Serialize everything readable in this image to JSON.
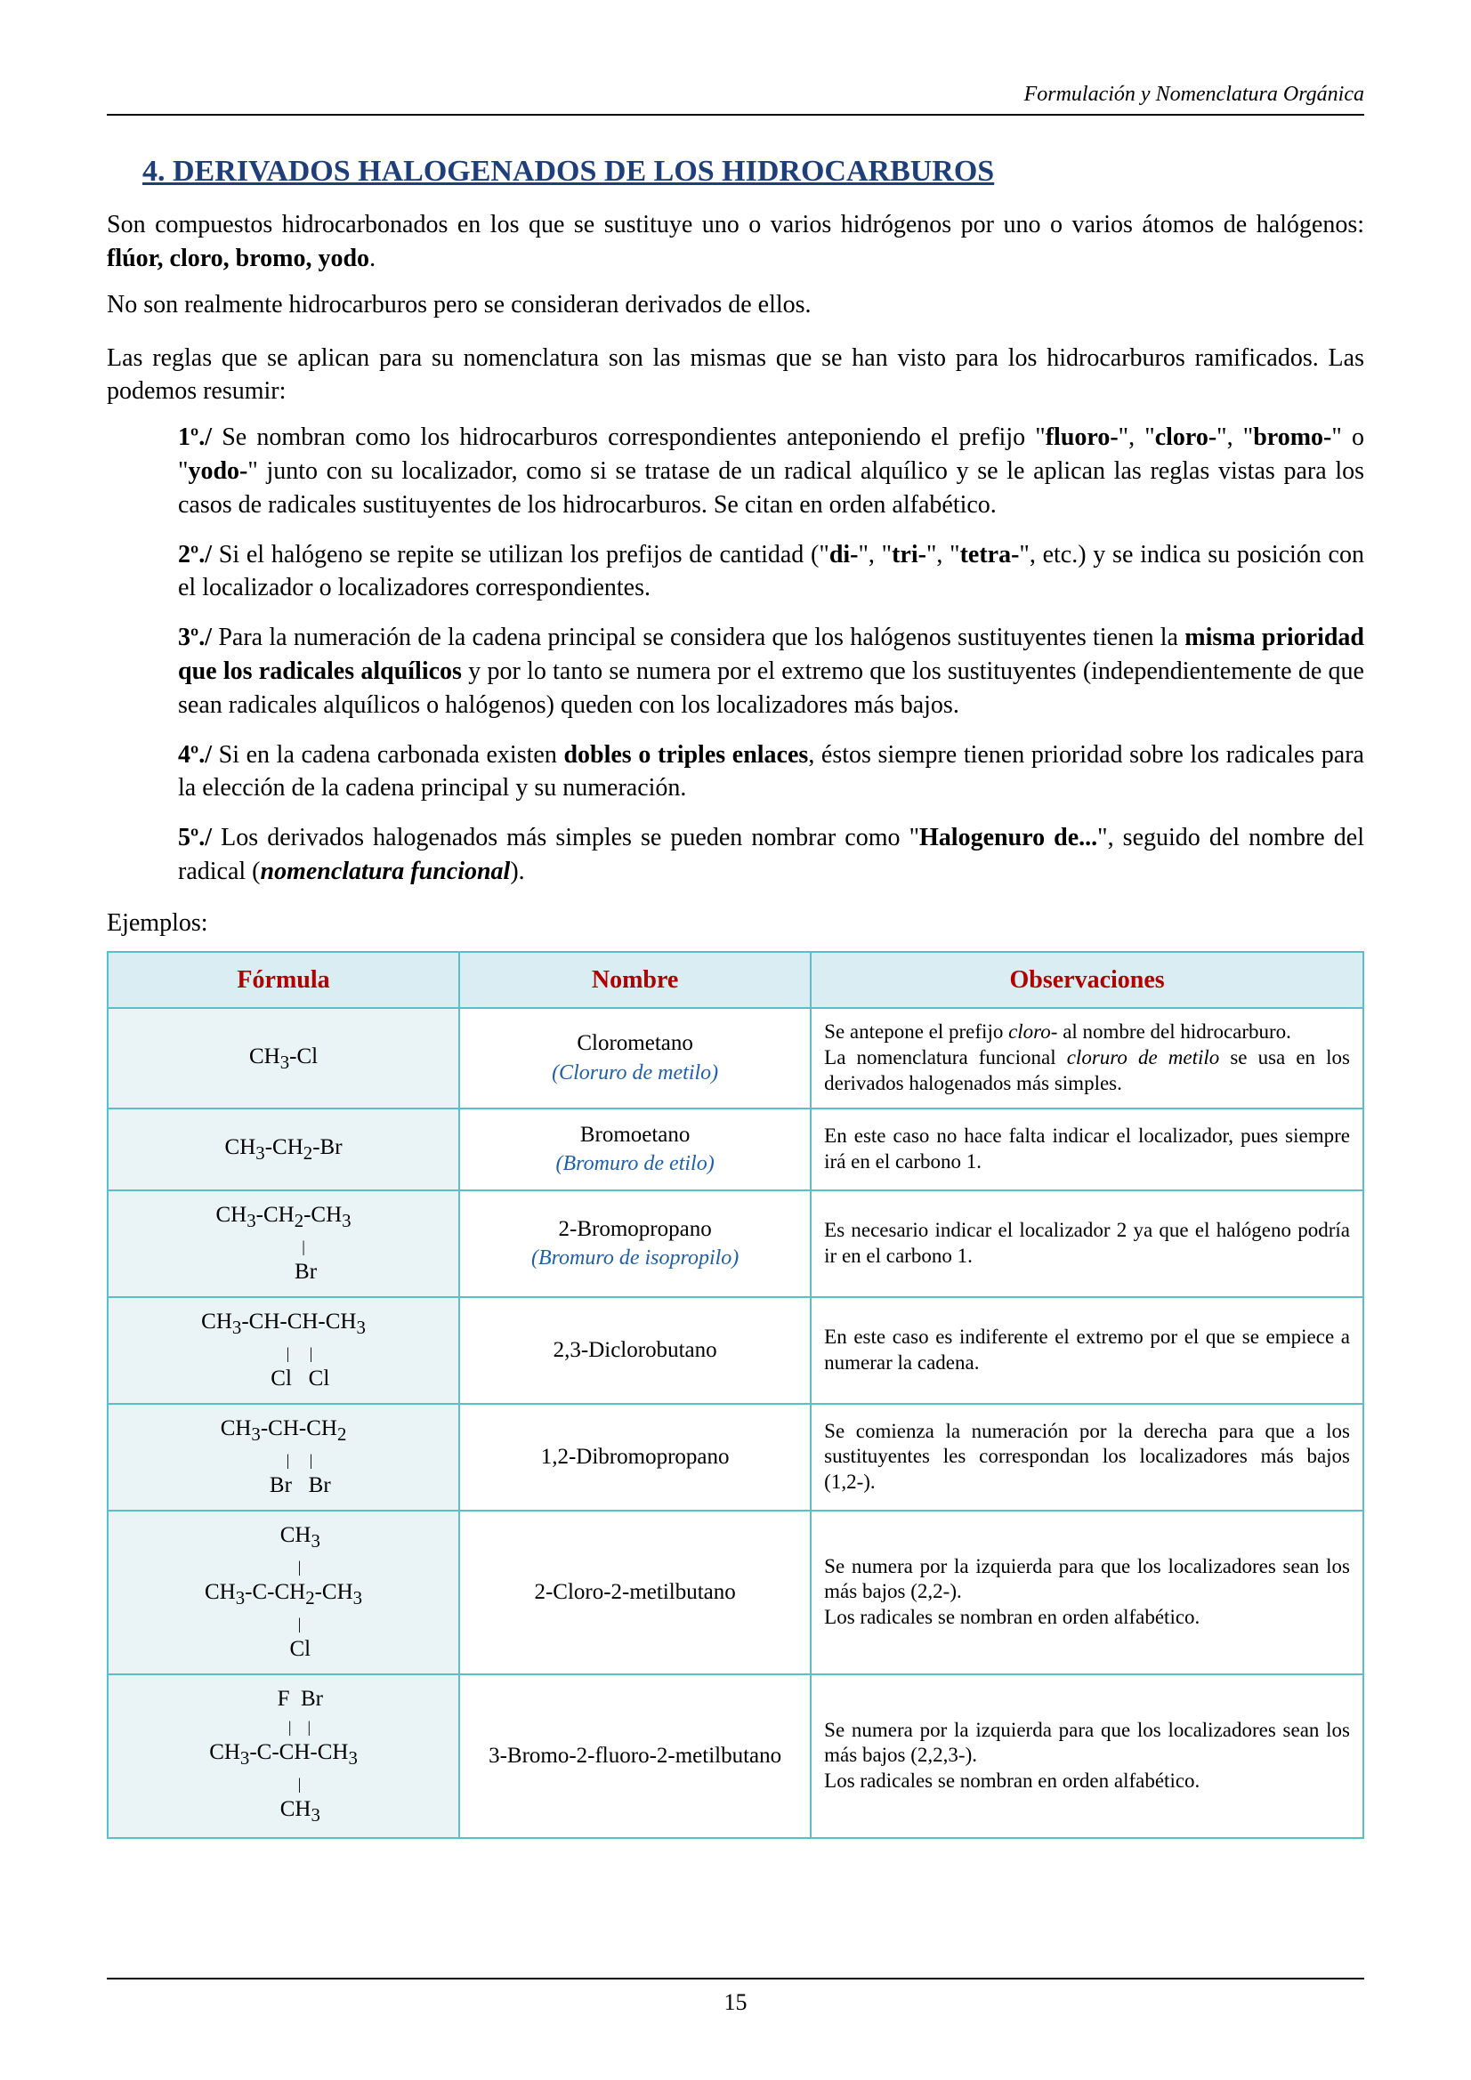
{
  "header": {
    "running_title": "Formulación y Nomenclatura Orgánica"
  },
  "section": {
    "number": "4.",
    "title": "DERIVADOS HALOGENADOS DE LOS HIDROCARBUROS",
    "title_color": "#1f3f7a"
  },
  "intro": {
    "p1_a": "Son compuestos hidrocarbonados en los que se sustituye uno o varios hidrógenos por uno o varios átomos de halógenos: ",
    "p1_bold": "flúor, cloro, bromo, yodo",
    "p1_c": ".",
    "p2": "No son realmente hidrocarburos pero se consideran derivados de ellos.",
    "p3": "Las reglas que se aplican para su nomenclatura son las mismas que se han visto para los hidrocarburos ramificados. Las podemos resumir:"
  },
  "rules": {
    "r1": {
      "label": "1º./",
      "a": "  Se nombran como los hidrocarburos correspondientes anteponiendo el prefijo \"",
      "b1": "fluoro-",
      "sep1": "\", \"",
      "b2": "cloro-",
      "sep2": "\", \"",
      "b3": "bromo-",
      "sep3": "\" o \"",
      "b4": "yodo-",
      "c": "\" junto con su localizador, como si se tratase de un radical alquílico y se le aplican las reglas vistas para los casos de radicales sustituyentes de los hidrocarburos.  Se citan en orden alfabético."
    },
    "r2": {
      "label": "2º./",
      "a": "  Si el halógeno se repite se utilizan los prefijos de cantidad (\"",
      "b1": "di-",
      "sep1": "\", \"",
      "b2": "tri-",
      "sep2": "\", \"",
      "b3": "tetra-",
      "c": "\", etc.) y se indica su posición con el localizador o localizadores correspondientes."
    },
    "r3": {
      "label": "3º./",
      "a": " Para la numeración de la cadena principal se considera que los halógenos sustituyentes tienen la ",
      "b": "misma prioridad que los radicales alquílicos",
      "c": " y por lo tanto se numera por el extremo que los sustituyentes (independientemente de que sean radicales alquílicos o halógenos) queden con los localizadores más bajos."
    },
    "r4": {
      "label": "4º./",
      "a": "  Si en la cadena carbonada existen ",
      "b": "dobles o triples enlaces",
      "c": ", éstos siempre tienen prioridad sobre los radicales para la elección de la cadena principal y su numeración."
    },
    "r5": {
      "label": "5º./",
      "a": "  Los derivados halogenados más simples se pueden nombrar como \"",
      "b": "Halogenuro de...",
      "c": "\", seguido del nombre del radical (",
      "d": "nomenclatura funcional",
      "e": ")."
    }
  },
  "examples_label": "Ejemplos:",
  "table": {
    "header_color": "#b00000",
    "header_bg": "#d9edf2",
    "border_color": "#5bbfc9",
    "formula_bg": "#eaf4f7",
    "funcname_color": "#1f5fa8",
    "columns": {
      "c1": "Fórmula",
      "c2": "Nombre",
      "c3": "Observaciones"
    },
    "rows": [
      {
        "formula_html": "CH<sub>3</sub>-Cl",
        "name": "Clorometano",
        "funcname": "(Cloruro de metilo)",
        "obs_a": "Se antepone el prefijo ",
        "obs_i1": "cloro-",
        "obs_b": " al nombre del hidrocarburo.",
        "obs_c": "La nomenclatura funcional ",
        "obs_i2": "cloruro de metilo",
        "obs_d": " se usa en los derivados halogenados más simples."
      },
      {
        "formula_html": "CH<sub>3</sub>-CH<sub>2</sub>-Br",
        "name": "Bromoetano",
        "funcname": "(Bromuro de etilo)",
        "obs": "En este caso no hace falta indicar el localizador, pues siempre irá en el carbono 1."
      },
      {
        "formula_html": "CH<sub>3</sub>-CH<sub>2</sub>-CH<sub>3</sub><br><span class=\"bondline\">&nbsp;&nbsp;&nbsp;&nbsp;&nbsp;&nbsp;&nbsp;&nbsp;&nbsp;&nbsp;|</span><br>&nbsp;&nbsp;&nbsp;&nbsp;&nbsp;&nbsp;&nbsp;&nbsp;Br",
        "name": "2-Bromopropano",
        "funcname": "(Bromuro de isopropilo)",
        "obs": "Es necesario indicar el localizador 2 ya que el halógeno podría ir en el carbono 1."
      },
      {
        "formula_html": "CH<sub>3</sub>-CH-CH-CH<sub>3</sub><br><span class=\"bondline\">&nbsp;&nbsp;&nbsp;&nbsp;&nbsp;&nbsp;&nbsp;&nbsp;|&nbsp;&nbsp;&nbsp;&nbsp;&nbsp;|</span><br>&nbsp;&nbsp;&nbsp;&nbsp;&nbsp;&nbsp;Cl&nbsp;&nbsp;&nbsp;Cl",
        "name": "2,3-Diclorobutano",
        "funcname": "",
        "obs": "En este caso es indiferente el extremo por el que se empiece a numerar la cadena."
      },
      {
        "formula_html": "CH<sub>3</sub>-CH-CH<sub>2</sub><br><span class=\"bondline\">&nbsp;&nbsp;&nbsp;&nbsp;&nbsp;&nbsp;&nbsp;&nbsp;|&nbsp;&nbsp;&nbsp;&nbsp;&nbsp;|</span><br>&nbsp;&nbsp;&nbsp;&nbsp;&nbsp;&nbsp;Br&nbsp;&nbsp;&nbsp;Br",
        "name": "1,2-Dibromopropano",
        "funcname": "",
        "obs": "Se comienza la numeración por la derecha para que a los sustituyentes les correspondan los localizadores más bajos (1,2-)."
      },
      {
        "formula_html": "&nbsp;&nbsp;&nbsp;&nbsp;&nbsp;&nbsp;CH<sub>3</sub><br><span class=\"bondline\">&nbsp;&nbsp;&nbsp;&nbsp;&nbsp;&nbsp;&nbsp;&nbsp;|</span><br>CH<sub>3</sub>-C-CH<sub>2</sub>-CH<sub>3</sub><br><span class=\"bondline\">&nbsp;&nbsp;&nbsp;&nbsp;&nbsp;&nbsp;&nbsp;&nbsp;|</span><br>&nbsp;&nbsp;&nbsp;&nbsp;&nbsp;&nbsp;Cl",
        "name": "2-Cloro-2-metilbutano",
        "funcname": "",
        "obs": "Se numera por la izquierda para que los localizadores sean los más bajos (2,2-).\nLos radicales se nombran en orden alfabético."
      },
      {
        "formula_html": "&nbsp;&nbsp;&nbsp;&nbsp;&nbsp;&nbsp;F&nbsp;&nbsp;Br<br><span class=\"bondline\">&nbsp;&nbsp;&nbsp;&nbsp;&nbsp;&nbsp;&nbsp;&nbsp;|&nbsp;&nbsp;&nbsp;&nbsp;|</span><br>CH<sub>3</sub>-C-CH-CH<sub>3</sub><br><span class=\"bondline\">&nbsp;&nbsp;&nbsp;&nbsp;&nbsp;&nbsp;&nbsp;&nbsp;|</span><br>&nbsp;&nbsp;&nbsp;&nbsp;&nbsp;&nbsp;CH<sub>3</sub>",
        "name": "3-Bromo-2-fluoro-2-metilbutano",
        "funcname": "",
        "obs": "Se numera por la izquierda para que los localizadores sean los más bajos (2,2,3-).\nLos radicales se nombran en orden alfabético."
      }
    ]
  },
  "footer": {
    "page_number": "15"
  }
}
